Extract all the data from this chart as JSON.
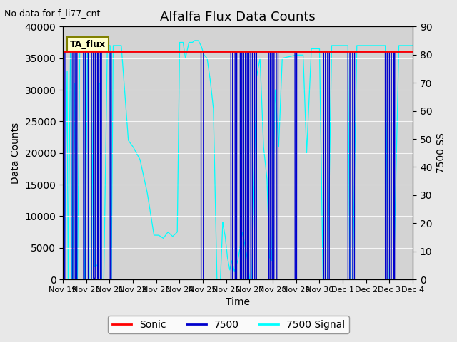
{
  "title": "Alfalfa Flux Data Counts",
  "xlabel": "Time",
  "ylabel_left": "Data Counts",
  "ylabel_right": "7500 SS",
  "note": "No data for f_li77_cnt",
  "annotation": "TA_flux",
  "ylim_left": [
    0,
    40000
  ],
  "ylim_right": [
    0,
    90
  ],
  "yticks_left": [
    0,
    5000,
    10000,
    15000,
    20000,
    25000,
    30000,
    35000,
    40000
  ],
  "yticks_right": [
    0,
    10,
    20,
    30,
    40,
    50,
    60,
    70,
    80,
    90
  ],
  "xtick_labels": [
    "Nov 19",
    "Nov 20",
    "Nov 21",
    "Nov 22",
    "Nov 23",
    "Nov 24",
    "Nov 25",
    "Nov 26",
    "Nov 27",
    "Nov 28",
    "Nov 29",
    "Nov 30",
    "Dec 1",
    "Dec 2",
    "Dec 3",
    "Dec 4"
  ],
  "sonic_color": "#ff0000",
  "blue_color": "#0000cc",
  "cyan_color": "#00ffff",
  "bg_color": "#e8e8e8",
  "plot_bg_color": "#d3d3d3",
  "sonic_value": 36000,
  "legend_labels": [
    "Sonic",
    "7500",
    "7500 Signal"
  ],
  "title_fontsize": 13,
  "label_fontsize": 10,
  "note_fontsize": 9,
  "tick_fontsize": 8
}
